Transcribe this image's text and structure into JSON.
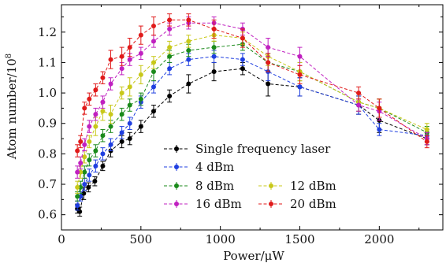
{
  "chart_data": {
    "type": "line",
    "xlabel": "Power/μW",
    "ylabel": "Atom number/10",
    "ylabel_exponent": "8",
    "xlim": [
      0,
      2400
    ],
    "ylim": [
      0.55,
      1.29
    ],
    "xticks": [
      0,
      500,
      1000,
      1500,
      2000
    ],
    "yticks": [
      0.6,
      0.7,
      0.8,
      0.9,
      1.0,
      1.1,
      1.2
    ],
    "ytick_labels": [
      "0.6",
      "0.7",
      "0.8",
      "0.9",
      "1.0",
      "1.1",
      "1.2"
    ],
    "grid": false,
    "legend_position": "lower-center",
    "series": [
      {
        "name": "Single frequency laser",
        "color": "#000000",
        "x": [
          100,
          115,
          140,
          170,
          210,
          260,
          310,
          380,
          430,
          500,
          580,
          680,
          800,
          960,
          1140,
          1300,
          1500,
          1870,
          2000,
          2300
        ],
        "y": [
          0.62,
          0.61,
          0.67,
          0.69,
          0.71,
          0.76,
          0.81,
          0.84,
          0.85,
          0.89,
          0.94,
          0.99,
          1.03,
          1.07,
          1.08,
          1.03,
          1.02,
          0.96,
          0.91,
          0.85
        ],
        "err": [
          0.015,
          0.015,
          0.02,
          0.015,
          0.015,
          0.015,
          0.02,
          0.02,
          0.02,
          0.02,
          0.02,
          0.02,
          0.03,
          0.03,
          0.02,
          0.04,
          0.03,
          0.03,
          0.04,
          0.02
        ]
      },
      {
        "name": "4 dBm",
        "color": "#1f3fe0",
        "x": [
          100,
          120,
          145,
          175,
          215,
          260,
          310,
          380,
          430,
          500,
          580,
          680,
          800,
          960,
          1140,
          1300,
          1500,
          1870,
          2000,
          2300
        ],
        "y": [
          0.63,
          0.66,
          0.7,
          0.73,
          0.76,
          0.8,
          0.83,
          0.87,
          0.9,
          0.97,
          1.02,
          1.08,
          1.11,
          1.12,
          1.11,
          1.07,
          1.02,
          0.96,
          0.88,
          0.86
        ],
        "err": [
          0.015,
          0.015,
          0.02,
          0.02,
          0.02,
          0.02,
          0.02,
          0.02,
          0.02,
          0.02,
          0.02,
          0.02,
          0.02,
          0.02,
          0.02,
          0.03,
          0.03,
          0.03,
          0.02,
          0.02
        ]
      },
      {
        "name": "8 dBm",
        "color": "#1a8a1a",
        "x": [
          100,
          120,
          145,
          175,
          215,
          260,
          310,
          380,
          430,
          500,
          580,
          680,
          800,
          960,
          1140,
          1300,
          1500,
          1870,
          2000,
          2300
        ],
        "y": [
          0.66,
          0.69,
          0.74,
          0.78,
          0.81,
          0.86,
          0.89,
          0.93,
          0.96,
          0.98,
          1.07,
          1.12,
          1.14,
          1.15,
          1.16,
          1.1,
          1.07,
          0.97,
          0.95,
          0.87
        ],
        "err": [
          0.015,
          0.02,
          0.02,
          0.02,
          0.02,
          0.02,
          0.02,
          0.02,
          0.02,
          0.02,
          0.03,
          0.02,
          0.02,
          0.02,
          0.02,
          0.03,
          0.03,
          0.03,
          0.03,
          0.02
        ]
      },
      {
        "name": "12 dBm",
        "color": "#c8c81a",
        "x": [
          100,
          120,
          145,
          175,
          215,
          260,
          310,
          380,
          430,
          500,
          580,
          680,
          800,
          960,
          1140,
          1300,
          1500,
          1870,
          2000,
          2300
        ],
        "y": [
          0.69,
          0.74,
          0.79,
          0.84,
          0.89,
          0.94,
          0.93,
          1.0,
          1.02,
          1.06,
          1.1,
          1.15,
          1.17,
          1.19,
          1.18,
          1.12,
          1.07,
          0.97,
          0.95,
          0.88
        ],
        "err": [
          0.02,
          0.02,
          0.02,
          0.02,
          0.03,
          0.03,
          0.03,
          0.02,
          0.03,
          0.03,
          0.02,
          0.02,
          0.02,
          0.02,
          0.02,
          0.03,
          0.03,
          0.03,
          0.03,
          0.02
        ]
      },
      {
        "name": "16 dBm",
        "color": "#c020c0",
        "x": [
          100,
          120,
          145,
          175,
          215,
          260,
          310,
          380,
          430,
          500,
          580,
          680,
          800,
          960,
          1140,
          1300,
          1500,
          1870,
          2000,
          2300
        ],
        "y": [
          0.74,
          0.77,
          0.83,
          0.89,
          0.93,
          0.97,
          1.03,
          1.08,
          1.11,
          1.13,
          1.17,
          1.21,
          1.23,
          1.23,
          1.21,
          1.15,
          1.12,
          0.96,
          0.94,
          0.85
        ],
        "err": [
          0.02,
          0.02,
          0.02,
          0.02,
          0.02,
          0.02,
          0.02,
          0.02,
          0.02,
          0.02,
          0.02,
          0.02,
          0.02,
          0.02,
          0.02,
          0.03,
          0.03,
          0.02,
          0.03,
          0.02
        ]
      },
      {
        "name": "20 dBm",
        "color": "#e01a1a",
        "x": [
          100,
          120,
          145,
          175,
          215,
          260,
          310,
          380,
          430,
          500,
          580,
          680,
          800,
          960,
          1140,
          1300,
          1500,
          1870,
          2000,
          2300
        ],
        "y": [
          0.81,
          0.84,
          0.95,
          0.98,
          1.01,
          1.05,
          1.11,
          1.12,
          1.15,
          1.19,
          1.22,
          1.24,
          1.24,
          1.21,
          1.18,
          1.1,
          1.06,
          1.0,
          0.95,
          0.84
        ],
        "err": [
          0.02,
          0.02,
          0.02,
          0.02,
          0.02,
          0.02,
          0.03,
          0.03,
          0.03,
          0.03,
          0.03,
          0.02,
          0.02,
          0.03,
          0.03,
          0.03,
          0.03,
          0.02,
          0.03,
          0.02
        ]
      }
    ]
  }
}
